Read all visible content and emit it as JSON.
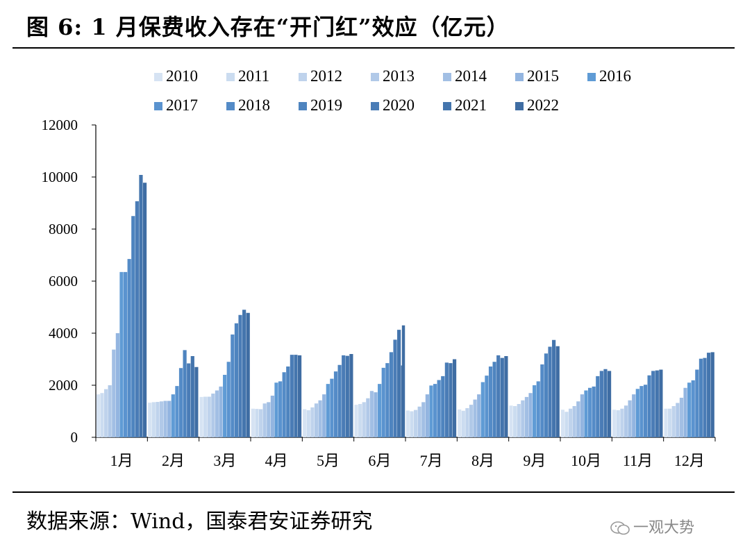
{
  "title": "图 6:  1 月保费收入存在“开门红”效应（亿元）",
  "source": "数据来源：Wind，国泰君安证券研究",
  "watermark": "一观大势",
  "chart_data": {
    "type": "bar",
    "categories": [
      "1月",
      "2月",
      "3月",
      "4月",
      "5月",
      "6月",
      "7月",
      "8月",
      "9月",
      "10月",
      "11月",
      "12月"
    ],
    "ylim": [
      0,
      12000
    ],
    "yticks": [
      0,
      2000,
      4000,
      6000,
      8000,
      10000,
      12000
    ],
    "grid": false,
    "legend_position": "top",
    "series": [
      {
        "name": "2010",
        "color": "#d6e3f3",
        "values": [
          1650,
          1330,
          1550,
          1100,
          1080,
          1250,
          1030,
          1070,
          1220,
          1060,
          1060,
          1100
        ]
      },
      {
        "name": "2011",
        "color": "#cbdcf0",
        "values": [
          1700,
          1350,
          1560,
          1090,
          1040,
          1280,
          1000,
          1020,
          1200,
          980,
          1040,
          1100
        ]
      },
      {
        "name": "2012",
        "color": "#bfd3ec",
        "values": [
          1850,
          1360,
          1560,
          1080,
          1150,
          1350,
          1050,
          1120,
          1280,
          1100,
          1100,
          1200
        ]
      },
      {
        "name": "2013",
        "color": "#b1c9e8",
        "values": [
          2000,
          1380,
          1680,
          1300,
          1300,
          1500,
          1180,
          1250,
          1420,
          1200,
          1220,
          1320
        ]
      },
      {
        "name": "2014",
        "color": "#a2bfe4",
        "values": [
          3370,
          1400,
          1800,
          1350,
          1420,
          1780,
          1350,
          1450,
          1550,
          1380,
          1420,
          1520
        ]
      },
      {
        "name": "2015",
        "color": "#93b5e0",
        "values": [
          4000,
          1400,
          1950,
          1600,
          1650,
          1730,
          1650,
          1650,
          1700,
          1650,
          1650,
          1900
        ]
      },
      {
        "name": "2016",
        "color": "#5f9bd5",
        "values": [
          6350,
          1650,
          2400,
          2100,
          2050,
          2050,
          1990,
          2120,
          2000,
          1800,
          1860,
          2100
        ]
      },
      {
        "name": "2017",
        "color": "#5a93cf",
        "values": [
          6350,
          1970,
          2900,
          2150,
          2250,
          2670,
          2050,
          2370,
          2150,
          1900,
          1970,
          2190
        ]
      },
      {
        "name": "2018",
        "color": "#548bc7",
        "values": [
          6850,
          2660,
          3950,
          2500,
          2530,
          2850,
          2200,
          2720,
          2800,
          1950,
          2020,
          2600
        ]
      },
      {
        "name": "2019",
        "color": "#4e84bf",
        "values": [
          8500,
          3350,
          4380,
          2720,
          2780,
          3270,
          2350,
          2900,
          3220,
          2350,
          2380,
          3020
        ]
      },
      {
        "name": "2020",
        "color": "#4a7cb6",
        "values": [
          9070,
          2840,
          4700,
          3170,
          3150,
          3750,
          2870,
          3150,
          3480,
          2550,
          2550,
          3050
        ]
      },
      {
        "name": "2021",
        "color": "#4475ad",
        "values": [
          10080,
          3120,
          4900,
          3170,
          3130,
          4130,
          2850,
          3050,
          3740,
          2620,
          2570,
          3250
        ]
      },
      {
        "name": "2022",
        "color": "#3f6da3",
        "values": [
          9780,
          2700,
          4780,
          3150,
          3200,
          2760,
          3000,
          3120,
          3500,
          2550,
          2600,
          3270
        ]
      }
    ],
    "extra_bar_last": {
      "category": "6月",
      "value": 4300,
      "note": "partial overlay"
    }
  }
}
